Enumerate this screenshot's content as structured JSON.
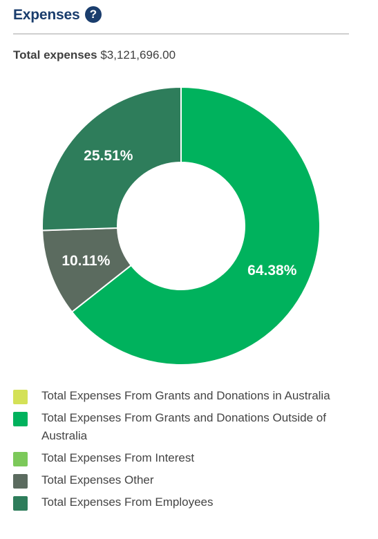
{
  "header": {
    "title": "Expenses",
    "help_icon": "question-circle-icon"
  },
  "total": {
    "label": "Total expenses",
    "value": "$3,121,696.00"
  },
  "chart_data": {
    "type": "pie",
    "donut": true,
    "start_angle_deg": 0,
    "categories": [
      "Total Expenses From Grants and Donations in Australia",
      "Total Expenses From Grants and Donations Outside of Australia",
      "Total Expenses From Interest",
      "Total Expenses Other",
      "Total Expenses From Employees"
    ],
    "values": [
      0,
      64.38,
      0,
      10.11,
      25.51
    ],
    "data_labels": [
      "",
      "64.38%",
      "",
      "10.11%",
      "25.51%"
    ],
    "colors": [
      "#d4e157",
      "#00b25d",
      "#7cc95a",
      "#5b6b5f",
      "#2e7d5b"
    ],
    "legend_position": "bottom"
  }
}
